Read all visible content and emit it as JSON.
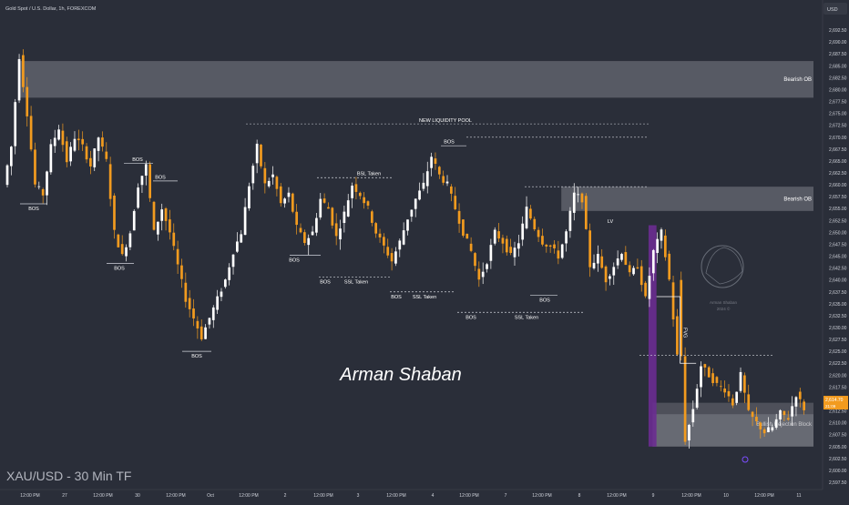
{
  "header": {
    "symbol_title": "Gold Spot / U.S. Dollar, 1h, FOREXCOM",
    "currency": "USD"
  },
  "footer_label": "XAU/USD - 30 Min TF",
  "signature": "Arman Shaban",
  "watermark": {
    "name": "Arman Shaban",
    "year": "2024 ©"
  },
  "colors": {
    "background": "#2a2e39",
    "up_candle": "#ffffff",
    "down_candle": "#f29b1f",
    "zone": "#6b6e76",
    "fvg": "#6a2c91",
    "price_tag": "#f29b1f"
  },
  "current_price": {
    "value": "2,614.70",
    "sub": "21:09"
  },
  "chart_data": {
    "type": "candlestick",
    "title": "Gold Spot / U.S. Dollar, 1h, FOREXCOM",
    "ylabel": "USD",
    "ylim": [
      2597.5,
      2695.0
    ],
    "y_ticks": [
      "2,597.50",
      "2,600.00",
      "2,602.50",
      "2,605.00",
      "2,607.50",
      "2,610.00",
      "2,612.50",
      "2,615.00",
      "2,617.50",
      "2,620.00",
      "2,622.50",
      "2,625.00",
      "2,627.50",
      "2,630.00",
      "2,632.50",
      "2,635.00",
      "2,637.50",
      "2,640.00",
      "2,642.50",
      "2,645.00",
      "2,647.50",
      "2,650.00",
      "2,652.50",
      "2,655.00",
      "2,657.50",
      "2,660.00",
      "2,662.50",
      "2,665.00",
      "2,667.50",
      "2,670.00",
      "2,672.50",
      "2,675.00",
      "2,677.50",
      "2,680.00",
      "2,682.50",
      "2,685.00",
      "2,687.50",
      "2,690.00",
      "2,692.50"
    ],
    "x_ticks": [
      "12:00 PM",
      "27",
      "12:00 PM",
      "30",
      "12:00 PM",
      "Oct",
      "12:00 PM",
      "2",
      "12:00 PM",
      "3",
      "12:00 PM",
      "4",
      "12:00 PM",
      "7",
      "12:00 PM",
      "8",
      "12:00 PM",
      "9",
      "12:00 PM",
      "10",
      "12:00 PM",
      "11"
    ],
    "waypoints": [
      [
        0,
        2660
      ],
      [
        2,
        2668
      ],
      [
        4,
        2687
      ],
      [
        6,
        2675
      ],
      [
        8,
        2660
      ],
      [
        10,
        2658
      ],
      [
        12,
        2668
      ],
      [
        14,
        2672
      ],
      [
        16,
        2665
      ],
      [
        18,
        2670
      ],
      [
        20,
        2668
      ],
      [
        22,
        2664
      ],
      [
        24,
        2670
      ],
      [
        26,
        2665
      ],
      [
        28,
        2650
      ],
      [
        30,
        2645
      ],
      [
        32,
        2650
      ],
      [
        34,
        2660
      ],
      [
        36,
        2664
      ],
      [
        38,
        2650
      ],
      [
        40,
        2655
      ],
      [
        42,
        2650
      ],
      [
        44,
        2643
      ],
      [
        46,
        2636
      ],
      [
        48,
        2632
      ],
      [
        50,
        2628
      ],
      [
        52,
        2632
      ],
      [
        54,
        2636
      ],
      [
        56,
        2640
      ],
      [
        58,
        2646
      ],
      [
        60,
        2650
      ],
      [
        62,
        2660
      ],
      [
        64,
        2668
      ],
      [
        66,
        2660
      ],
      [
        68,
        2662
      ],
      [
        70,
        2656
      ],
      [
        72,
        2658
      ],
      [
        74,
        2651
      ],
      [
        76,
        2648
      ],
      [
        78,
        2650
      ],
      [
        80,
        2657
      ],
      [
        82,
        2655
      ],
      [
        84,
        2649
      ],
      [
        86,
        2654
      ],
      [
        88,
        2660
      ],
      [
        90,
        2658
      ],
      [
        92,
        2655
      ],
      [
        94,
        2650
      ],
      [
        96,
        2647
      ],
      [
        98,
        2644
      ],
      [
        100,
        2648
      ],
      [
        102,
        2653
      ],
      [
        104,
        2657
      ],
      [
        106,
        2660
      ],
      [
        108,
        2666
      ],
      [
        110,
        2662
      ],
      [
        112,
        2660
      ],
      [
        114,
        2655
      ],
      [
        116,
        2650
      ],
      [
        118,
        2646
      ],
      [
        120,
        2640
      ],
      [
        122,
        2644
      ],
      [
        124,
        2650
      ],
      [
        126,
        2648
      ],
      [
        128,
        2645
      ],
      [
        130,
        2648
      ],
      [
        132,
        2655
      ],
      [
        134,
        2651
      ],
      [
        136,
        2648
      ],
      [
        138,
        2647
      ],
      [
        140,
        2645
      ],
      [
        142,
        2650
      ],
      [
        144,
        2658
      ],
      [
        146,
        2657
      ],
      [
        148,
        2643
      ],
      [
        150,
        2645
      ],
      [
        152,
        2640
      ],
      [
        154,
        2643
      ],
      [
        156,
        2646
      ],
      [
        158,
        2641
      ],
      [
        160,
        2643
      ],
      [
        162,
        2636
      ],
      [
        164,
        2646
      ],
      [
        166,
        2650
      ],
      [
        168,
        2640
      ],
      [
        170,
        2624
      ],
      [
        172,
        2606
      ],
      [
        174,
        2613
      ],
      [
        176,
        2622
      ],
      [
        178,
        2620
      ],
      [
        180,
        2618
      ],
      [
        182,
        2617
      ],
      [
        184,
        2614
      ],
      [
        186,
        2620
      ],
      [
        188,
        2612
      ],
      [
        190,
        2610
      ],
      [
        192,
        2608
      ],
      [
        194,
        2609
      ],
      [
        196,
        2612
      ],
      [
        198,
        2611
      ],
      [
        200,
        2616
      ],
      [
        202,
        2613
      ]
    ],
    "zones": [
      {
        "label": "Bearish OB",
        "top": 2686.0,
        "bottom": 2678.3,
        "x_start": 3
      },
      {
        "label": "Bearish OB",
        "top": 2659.6,
        "bottom": 2654.5,
        "x_start": 140
      },
      {
        "label": "Bullish Rejection Block",
        "top": 2614.2,
        "bottom": 2605.0,
        "x_start": 163
      }
    ],
    "fvg": {
      "label": "FVG",
      "top": 2651.5,
      "bottom": 2605.0,
      "x_start": 162,
      "x_end": 164
    },
    "liquidity_lines": [
      {
        "label": "NEW LIQUIDITY POOL",
        "price": 2672.8
      },
      {
        "label": "new Liquidity Pool",
        "price": 2670.0
      },
      {
        "label": "new Liquidity Pool",
        "price": 2659.6
      },
      {
        "label": "new Liquidity Pool",
        "price": 2624.2
      }
    ],
    "markers": [
      {
        "label": "BOS",
        "price": 2656.0
      },
      {
        "label": "BOS",
        "price": 2664.5
      },
      {
        "label": "BOS",
        "price": 2660.8
      },
      {
        "label": "BOS",
        "price": 2643.5
      },
      {
        "label": "BOS",
        "price": 2625.0
      },
      {
        "label": "BSL Taken",
        "price": 2661.5
      },
      {
        "label": "BOS",
        "price": 2645.2
      },
      {
        "label": "BOS",
        "price": 2640.6
      },
      {
        "label": "SSL Taken",
        "price": 2640.6
      },
      {
        "label": "BOS",
        "price": 2668.2
      },
      {
        "label": "BOS",
        "price": 2637.5
      },
      {
        "label": "SSL Taken",
        "price": 2637.5
      },
      {
        "label": "BOS",
        "price": 2633.2
      },
      {
        "label": "SSL Taken",
        "price": 2633.2
      },
      {
        "label": "BOS",
        "price": 2636.8
      },
      {
        "label": "LV",
        "price": 2651.5
      }
    ]
  }
}
